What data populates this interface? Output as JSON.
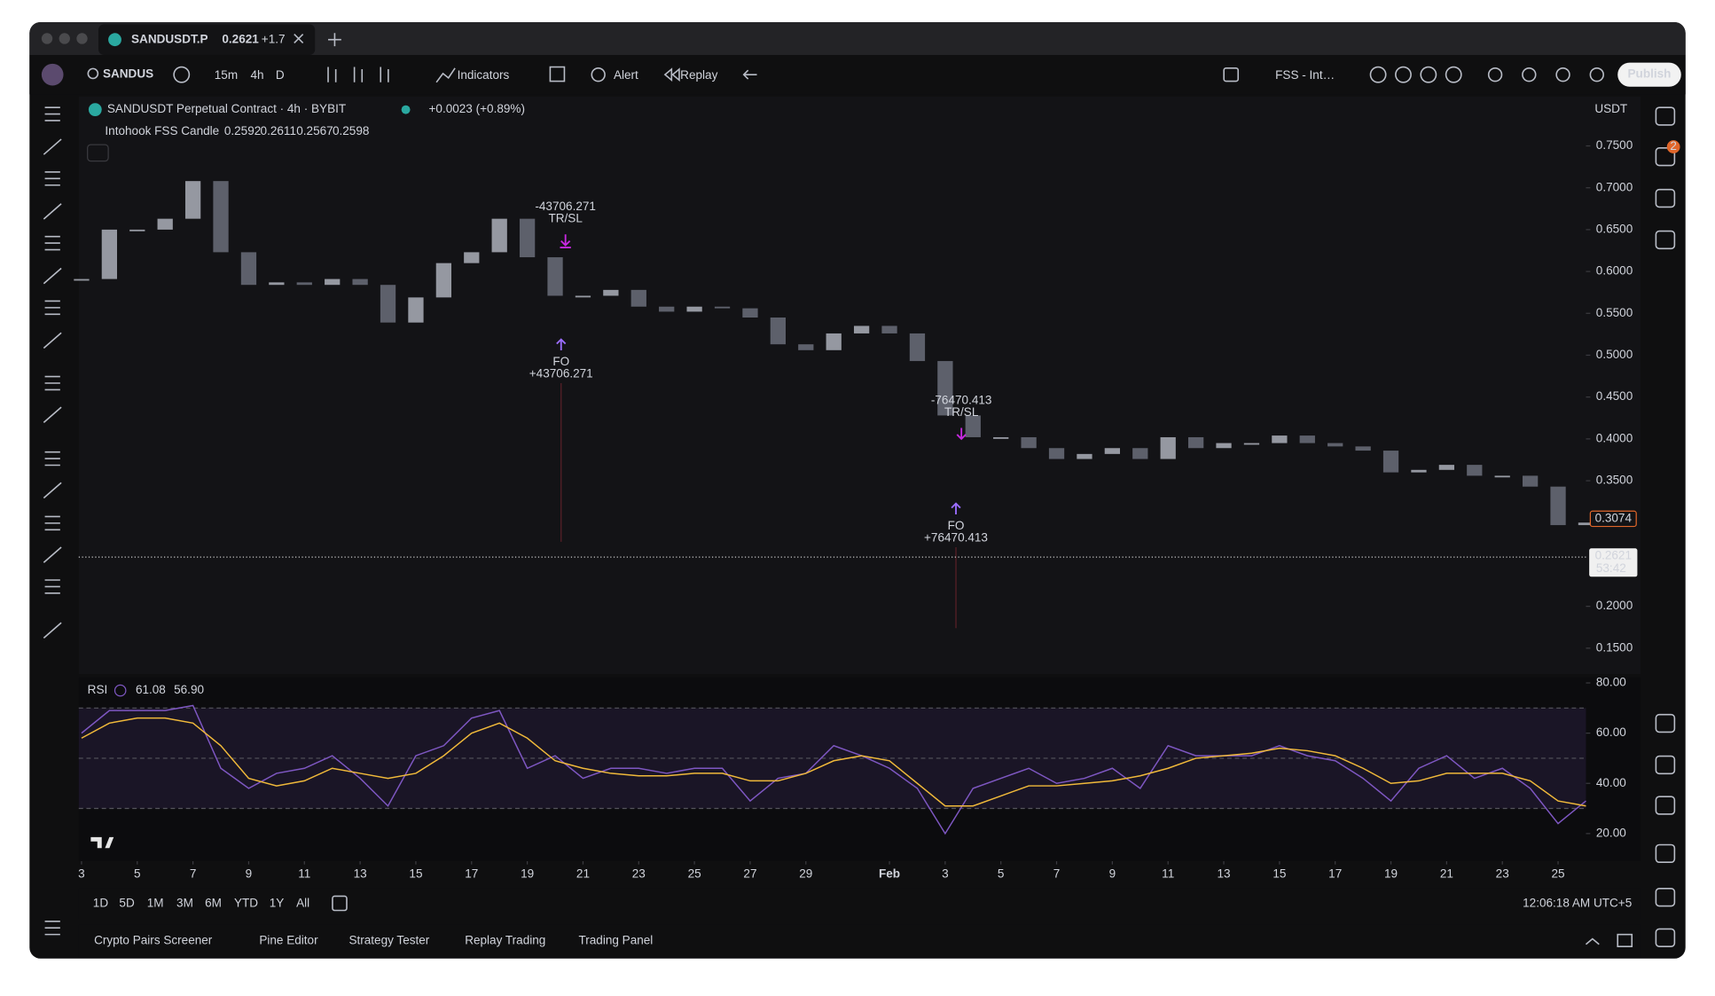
{
  "window": {
    "tab_symbol": "SANDUSDT.P",
    "tab_price": "0.2621",
    "tab_change": "+1.7"
  },
  "toolbar": {
    "symbol": "SANDUS",
    "intervals": [
      "15m",
      "4h",
      "D"
    ],
    "indicators": "Indicators",
    "alert": "Alert",
    "replay": "Replay",
    "script": "FSS - Int…",
    "publish": "Publish"
  },
  "legend": {
    "title": "SANDUSDT Perpetual Contract · 4h · BYBIT",
    "change": "+0.0023 (+0.89%)",
    "indicator": "Intohook FSS Candle",
    "indicator_values": [
      "0.2592",
      "0.2611",
      "0.2567",
      "0.2598"
    ]
  },
  "price_scale": {
    "currency": "USDT",
    "marker": "0.3074",
    "last_price": "0.2621",
    "countdown": "53:42"
  },
  "sidebar": {
    "badge": "2"
  },
  "annotations": [
    {
      "label": "-43706.271",
      "kind": "TR/SL"
    },
    {
      "label": "+43706.271",
      "kind": "FO"
    },
    {
      "label": "-76470.413",
      "kind": "TR/SL"
    },
    {
      "label": "+76470.413",
      "kind": "FO"
    }
  ],
  "chart_data": [
    {
      "type": "candlestick",
      "color": "#9598a1",
      "down_color": "#5d606b",
      "x": [
        0,
        1,
        2,
        3,
        4,
        5,
        6,
        7,
        8,
        9,
        10,
        11,
        12,
        13,
        14,
        15,
        16,
        17,
        18,
        19,
        20,
        21,
        22,
        23,
        24,
        25,
        26,
        27,
        28,
        29,
        30,
        31,
        32,
        33,
        34,
        35,
        36,
        37,
        38,
        39,
        40,
        41,
        42,
        43,
        44,
        45,
        46,
        47,
        48,
        49,
        50,
        51,
        52,
        53,
        54
      ],
      "values": [
        0.591,
        0.65,
        0.65,
        0.663,
        0.708,
        0.623,
        0.584,
        0.587,
        0.584,
        0.591,
        0.584,
        0.539,
        0.569,
        0.61,
        0.623,
        0.663,
        0.617,
        0.571,
        0.571,
        0.578,
        0.558,
        0.552,
        0.558,
        0.556,
        0.545,
        0.513,
        0.506,
        0.526,
        0.535,
        0.526,
        0.493,
        0.428,
        0.402,
        0.402,
        0.389,
        0.376,
        0.382,
        0.389,
        0.376,
        0.402,
        0.389,
        0.395,
        0.395,
        0.404,
        0.395,
        0.391,
        0.386,
        0.36,
        0.363,
        0.369,
        0.356,
        0.356,
        0.343,
        0.297,
        0.3
      ],
      "xlim": [
        -0.1,
        54.0
      ],
      "xticks": [
        {
          "value": 0,
          "label": "3"
        },
        {
          "value": 2,
          "label": "5"
        },
        {
          "value": 4,
          "label": "7"
        },
        {
          "value": 6,
          "label": "9"
        },
        {
          "value": 8,
          "label": "11"
        },
        {
          "value": 10,
          "label": "13"
        },
        {
          "value": 12,
          "label": "15"
        },
        {
          "value": 14,
          "label": "17"
        },
        {
          "value": 16,
          "label": "19"
        },
        {
          "value": 18,
          "label": "21"
        },
        {
          "value": 20,
          "label": "23"
        },
        {
          "value": 22,
          "label": "25"
        },
        {
          "value": 24,
          "label": "27"
        },
        {
          "value": 26,
          "label": "29"
        },
        {
          "value": 29,
          "label": "Feb"
        },
        {
          "value": 31,
          "label": "3"
        },
        {
          "value": 33,
          "label": "5"
        },
        {
          "value": 35,
          "label": "7"
        },
        {
          "value": 37,
          "label": "9"
        },
        {
          "value": 39,
          "label": "11"
        },
        {
          "value": 41,
          "label": "13"
        },
        {
          "value": 43,
          "label": "15"
        },
        {
          "value": 45,
          "label": "17"
        },
        {
          "value": 47,
          "label": "19"
        },
        {
          "value": 49,
          "label": "21"
        },
        {
          "value": 51,
          "label": "23"
        },
        {
          "value": 53,
          "label": "25"
        }
      ],
      "ylim": [
        0.119,
        0.809
      ],
      "yticks": [
        {
          "value": 0.15,
          "label": "0.1500"
        },
        {
          "value": 0.2,
          "label": "0.2000"
        },
        {
          "value": 0.35,
          "label": "0.3500"
        },
        {
          "value": 0.4,
          "label": "0.4000"
        },
        {
          "value": 0.45,
          "label": "0.4500"
        },
        {
          "value": 0.5,
          "label": "0.5000"
        },
        {
          "value": 0.55,
          "label": "0.5500"
        },
        {
          "value": 0.6,
          "label": "0.6000"
        },
        {
          "value": 0.65,
          "label": "0.6500"
        },
        {
          "value": 0.7,
          "label": "0.7000"
        },
        {
          "value": 0.75,
          "label": "0.7500"
        }
      ]
    },
    {
      "type": "line",
      "title": "RSI",
      "x": [
        0,
        1,
        2,
        3,
        4,
        5,
        6,
        7,
        8,
        9,
        10,
        11,
        12,
        13,
        14,
        15,
        16,
        17,
        18,
        19,
        20,
        21,
        22,
        23,
        24,
        25,
        26,
        27,
        28,
        29,
        30,
        31,
        32,
        33,
        34,
        35,
        36,
        37,
        38,
        39,
        40,
        41,
        42,
        43,
        44,
        45,
        46,
        47,
        48,
        49,
        50,
        51,
        52,
        53,
        54
      ],
      "xlim": [
        -0.1,
        54.0
      ],
      "series": [
        {
          "color": "#7e57c2",
          "legend_value": "61.08",
          "values": [
            60,
            69,
            69,
            69,
            71,
            46,
            38,
            44,
            46,
            51,
            42,
            31,
            51,
            55,
            66,
            69,
            46,
            51,
            42,
            46,
            46,
            44,
            46,
            46,
            33,
            42,
            44,
            55,
            51,
            46,
            38,
            20,
            38,
            42,
            46,
            40,
            42,
            46,
            38,
            55,
            51,
            51,
            51,
            55,
            51,
            49,
            42,
            33,
            46,
            51,
            42,
            46,
            38,
            24,
            33
          ]
        },
        {
          "color": "#f0b93a",
          "legend_value": "56.90",
          "values": [
            58,
            64,
            66,
            66,
            64,
            55,
            42,
            39,
            41,
            46,
            44,
            42,
            44,
            51,
            60,
            64,
            58,
            49,
            46,
            44,
            43,
            43,
            44,
            44,
            41,
            41,
            44,
            49,
            51,
            49,
            40,
            31,
            31,
            35,
            39,
            39,
            40,
            41,
            43,
            46,
            50,
            51,
            52,
            54,
            53,
            51,
            46,
            40,
            41,
            44,
            44,
            44,
            41,
            33,
            31
          ]
        }
      ],
      "bands": [
        70,
        50,
        30
      ],
      "ylim": [
        9,
        82.2
      ],
      "yticks": [
        {
          "value": 20,
          "label": "20.00"
        },
        {
          "value": 40,
          "label": "40.00"
        },
        {
          "value": 60,
          "label": "60.00"
        },
        {
          "value": 80,
          "label": "80.00"
        }
      ]
    }
  ],
  "footer": {
    "ranges": [
      "1D",
      "5D",
      "1M",
      "3M",
      "6M",
      "YTD",
      "1Y",
      "All"
    ],
    "clock": "12:06:18 AM UTC+5",
    "tabs": [
      "Crypto Pairs Screener",
      "Pine Editor",
      "Strategy Tester",
      "Replay Trading",
      "Trading Panel"
    ]
  }
}
